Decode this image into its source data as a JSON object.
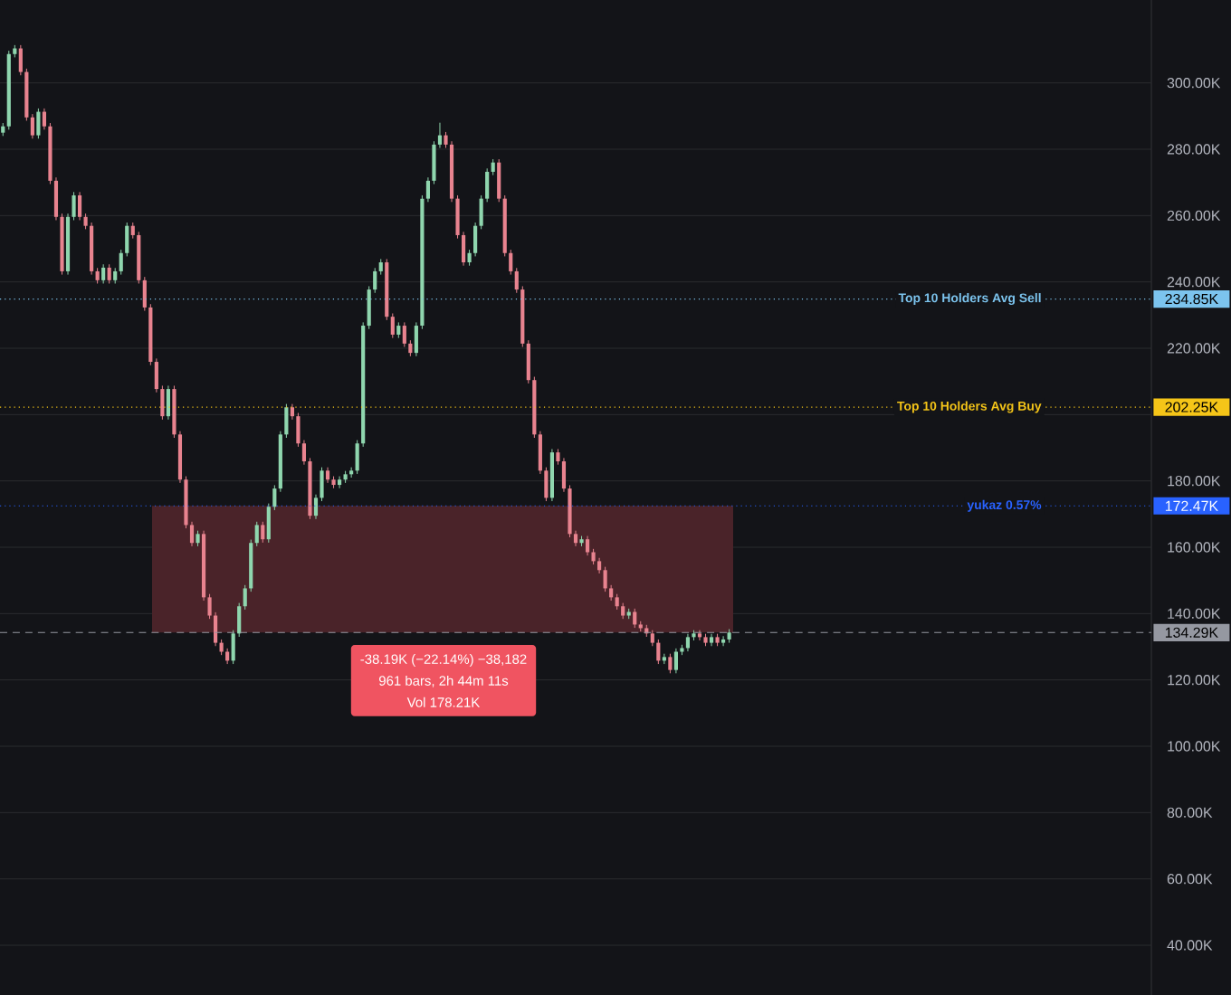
{
  "chart_data": {
    "type": "candlestick",
    "categories": [
      null,
      null,
      null,
      null,
      null,
      null,
      null,
      null,
      null,
      null,
      null,
      null,
      null,
      null,
      null,
      null,
      null,
      null,
      null,
      null,
      null,
      null,
      null,
      null,
      null,
      null,
      null,
      null,
      null,
      null,
      null,
      null,
      null,
      null,
      null,
      null,
      null,
      null,
      null,
      null,
      null,
      null,
      null,
      null,
      null,
      null,
      null,
      null,
      null,
      null,
      null,
      null,
      null,
      null,
      null,
      null,
      null,
      null,
      null,
      null,
      null,
      null,
      null,
      null,
      null,
      null,
      null,
      null,
      null,
      null,
      null,
      null,
      null,
      null,
      null,
      null,
      null,
      null,
      null,
      null,
      null,
      null,
      null,
      null,
      null,
      null,
      null,
      null,
      null,
      null,
      null,
      null,
      null,
      null,
      null,
      null,
      null,
      null,
      null,
      null,
      null,
      null,
      null,
      null,
      null,
      null,
      null,
      null,
      null,
      null,
      null,
      null,
      null,
      null,
      null,
      null,
      null,
      null,
      null,
      null,
      null,
      null,
      null,
      null,
      null,
      null,
      null,
      null,
      null,
      null,
      null,
      null,
      null,
      null,
      null,
      null,
      null,
      null,
      null,
      null,
      null,
      null,
      null,
      null,
      null,
      null,
      null,
      null,
      null,
      null,
      null,
      null,
      null,
      null,
      null,
      null,
      null,
      null,
      null,
      null,
      null,
      null,
      null,
      null,
      null,
      null,
      null,
      null,
      null,
      null,
      null,
      null,
      null,
      null,
      null,
      null,
      null,
      null,
      null,
      null,
      null,
      null,
      null,
      null,
      null,
      null,
      null,
      null,
      null,
      null,
      null,
      null,
      null,
      null,
      null
    ],
    "ohlc": [
      [
        285,
        287.9,
        284,
        286.9
      ],
      [
        286.9,
        309.7,
        285.9,
        308.7
      ],
      [
        308.7,
        311.4,
        307.7,
        310.4
      ],
      [
        310.4,
        311.4,
        302.3,
        303.3
      ],
      [
        303.3,
        304.3,
        288.6,
        289.6
      ],
      [
        289.6,
        290.6,
        283.2,
        284.2
      ],
      [
        284.2,
        292.3,
        283.2,
        291.3
      ],
      [
        291.3,
        292.3,
        285.9,
        286.9
      ],
      [
        286.9,
        287.9,
        269.5,
        270.5
      ],
      [
        270.5,
        271.5,
        258.6,
        259.6
      ],
      [
        259.6,
        260.6,
        242.2,
        243.2
      ],
      [
        243.2,
        260.6,
        242.2,
        259.6
      ],
      [
        259.6,
        267.1,
        258.6,
        266.1
      ],
      [
        266.1,
        267.1,
        258.6,
        259.6
      ],
      [
        259.6,
        260.6,
        255.9,
        256.9
      ],
      [
        256.9,
        257.9,
        242.2,
        243.2
      ],
      [
        243.2,
        244.2,
        239.5,
        240.5
      ],
      [
        240.5,
        245.3,
        239.5,
        244.3
      ],
      [
        244.3,
        245.3,
        239.5,
        240.5
      ],
      [
        240.5,
        244.2,
        239.5,
        243.2
      ],
      [
        243.2,
        249.7,
        242.2,
        248.7
      ],
      [
        248.7,
        257.9,
        247.7,
        256.9
      ],
      [
        256.9,
        257.9,
        253.1,
        254.1
      ],
      [
        254.1,
        255.1,
        239.5,
        240.5
      ],
      [
        240.5,
        241.5,
        231.3,
        232.3
      ],
      [
        232.3,
        233.3,
        214.9,
        215.9
      ],
      [
        215.9,
        216.9,
        206.7,
        207.7
      ],
      [
        207.7,
        208.7,
        198.5,
        199.5
      ],
      [
        199.5,
        208.7,
        198.5,
        207.7
      ],
      [
        207.7,
        208.7,
        193.0,
        194.0
      ],
      [
        194.0,
        195.0,
        179.4,
        180.4
      ],
      [
        180.4,
        181.4,
        165.7,
        166.7
      ],
      [
        166.7,
        167.7,
        160.3,
        161.3
      ],
      [
        161.3,
        165.0,
        160.3,
        164.0
      ],
      [
        164.0,
        165.0,
        143.9,
        144.9
      ],
      [
        144.9,
        145.9,
        138.4,
        139.4
      ],
      [
        139.4,
        140.4,
        130.2,
        131.2
      ],
      [
        131.2,
        132.2,
        127.5,
        128.5
      ],
      [
        128.5,
        129.5,
        124.8,
        125.8
      ],
      [
        125.8,
        135.0,
        124.8,
        134.0
      ],
      [
        134.0,
        143.2,
        133.0,
        142.2
      ],
      [
        142.2,
        148.6,
        141.2,
        147.6
      ],
      [
        147.6,
        162.3,
        146.6,
        161.3
      ],
      [
        161.3,
        167.7,
        160.3,
        166.7
      ],
      [
        166.7,
        167.7,
        161.4,
        162.4
      ],
      [
        162.4,
        173.2,
        161.4,
        172.2
      ],
      [
        172.2,
        178.7,
        171.2,
        177.7
      ],
      [
        177.7,
        195.0,
        176.7,
        194.0
      ],
      [
        194.0,
        203.2,
        193.0,
        202.2
      ],
      [
        202.2,
        203.2,
        198.5,
        199.5
      ],
      [
        199.5,
        200.5,
        190.3,
        191.3
      ],
      [
        191.3,
        192.3,
        184.9,
        185.9
      ],
      [
        185.9,
        186.9,
        168.5,
        169.5
      ],
      [
        169.5,
        175.9,
        168.5,
        174.9
      ],
      [
        174.9,
        184.1,
        173.9,
        183.1
      ],
      [
        183.1,
        184.1,
        179.4,
        180.4
      ],
      [
        180.4,
        181.4,
        177.8,
        178.8
      ],
      [
        178.8,
        181.4,
        177.8,
        180.4
      ],
      [
        180.4,
        183.0,
        179.4,
        182.0
      ],
      [
        182.0,
        184.1,
        181.0,
        183.1
      ],
      [
        183.1,
        192.3,
        182.1,
        191.3
      ],
      [
        191.3,
        227.8,
        190.3,
        226.8
      ],
      [
        226.8,
        238.7,
        225.8,
        237.7
      ],
      [
        237.7,
        244.2,
        236.7,
        243.2
      ],
      [
        243.2,
        246.9,
        242.2,
        245.9
      ],
      [
        245.9,
        246.9,
        228.5,
        229.5
      ],
      [
        229.5,
        230.5,
        223.1,
        224.1
      ],
      [
        224.1,
        227.8,
        223.1,
        226.8
      ],
      [
        226.8,
        227.8,
        220.4,
        221.4
      ],
      [
        221.4,
        222.4,
        217.6,
        218.6
      ],
      [
        218.6,
        227.8,
        217.6,
        226.8
      ],
      [
        226.8,
        266.1,
        225.8,
        265.1
      ],
      [
        265.1,
        271.5,
        264.1,
        270.5
      ],
      [
        270.5,
        282.4,
        269.5,
        281.4
      ],
      [
        281.4,
        288.0,
        280.4,
        284.2
      ],
      [
        284.2,
        285.2,
        280.4,
        281.4
      ],
      [
        281.4,
        282.4,
        264.1,
        265.1
      ],
      [
        265.1,
        266.1,
        253.1,
        254.1
      ],
      [
        254.1,
        255.1,
        244.9,
        245.9
      ],
      [
        245.9,
        249.7,
        244.9,
        248.7
      ],
      [
        248.7,
        257.9,
        247.7,
        256.9
      ],
      [
        256.9,
        266.1,
        255.9,
        265.1
      ],
      [
        265.1,
        274.2,
        264.1,
        273.2
      ],
      [
        273.2,
        277.0,
        272.2,
        276.0
      ],
      [
        276.0,
        277.0,
        264.1,
        265.1
      ],
      [
        265.1,
        266.1,
        247.7,
        248.7
      ],
      [
        248.7,
        249.7,
        242.2,
        243.2
      ],
      [
        243.2,
        244.2,
        236.7,
        237.7
      ],
      [
        237.7,
        238.7,
        220.4,
        221.4
      ],
      [
        221.4,
        222.4,
        209.4,
        210.4
      ],
      [
        210.4,
        211.4,
        193.0,
        194.0
      ],
      [
        194.0,
        195.0,
        182.1,
        183.1
      ],
      [
        183.1,
        184.1,
        173.9,
        174.9
      ],
      [
        174.9,
        189.6,
        173.9,
        188.6
      ],
      [
        188.6,
        189.6,
        184.9,
        185.9
      ],
      [
        185.9,
        186.9,
        176.7,
        177.7
      ],
      [
        177.7,
        178.7,
        163.0,
        164.0
      ],
      [
        164.0,
        165.0,
        160.3,
        161.3
      ],
      [
        161.3,
        163.4,
        160.3,
        162.4
      ],
      [
        162.4,
        163.4,
        157.5,
        158.5
      ],
      [
        158.5,
        159.5,
        154.8,
        155.8
      ],
      [
        155.8,
        156.8,
        152.1,
        153.1
      ],
      [
        153.1,
        154.1,
        146.6,
        147.6
      ],
      [
        147.6,
        148.6,
        143.9,
        144.9
      ],
      [
        144.9,
        145.9,
        141.2,
        142.2
      ],
      [
        142.2,
        143.2,
        138.4,
        139.4
      ],
      [
        139.4,
        141.5,
        138.4,
        140.5
      ],
      [
        140.5,
        141.5,
        135.7,
        136.7
      ],
      [
        136.7,
        137.7,
        134.6,
        135.6
      ],
      [
        135.6,
        136.6,
        133.0,
        134.0
      ],
      [
        134.0,
        135.0,
        130.2,
        131.2
      ],
      [
        131.2,
        132.2,
        124.8,
        125.8
      ],
      [
        125.8,
        127.9,
        124.8,
        126.9
      ],
      [
        126.9,
        127.9,
        122.0,
        123.0
      ],
      [
        123.0,
        129.5,
        122.0,
        128.5
      ],
      [
        128.5,
        130.6,
        127.5,
        129.6
      ],
      [
        129.6,
        133.9,
        128.6,
        132.9
      ],
      [
        132.9,
        135.0,
        131.9,
        134.0
      ],
      [
        134.0,
        135.0,
        131.9,
        132.9
      ],
      [
        132.9,
        133.9,
        130.2,
        131.2
      ],
      [
        131.2,
        133.9,
        130.2,
        132.9
      ],
      [
        132.9,
        133.9,
        130.2,
        131.2
      ],
      [
        131.2,
        133.2,
        130.2,
        132.2
      ],
      [
        132.2,
        135.3,
        131.2,
        134.3
      ],
      null,
      null,
      null,
      null,
      null,
      null,
      null,
      null,
      null,
      null,
      null,
      null,
      null,
      null,
      null,
      null,
      null,
      null,
      null,
      null,
      null,
      null,
      null,
      null,
      null,
      null,
      null,
      null,
      null,
      null,
      null,
      null,
      null,
      null,
      null,
      null,
      null,
      null,
      null,
      null,
      null,
      null,
      null,
      null,
      null,
      null,
      null,
      null,
      null,
      null,
      null,
      null,
      null,
      null,
      null,
      null,
      null,
      null,
      null,
      null,
      null,
      null,
      null,
      null,
      null,
      null,
      null,
      null,
      null,
      null,
      null
    ],
    "ylim": [
      25,
      325
    ],
    "yticks": [
      {
        "value": 40,
        "label": "40.00K"
      },
      {
        "value": 60,
        "label": "60.00K"
      },
      {
        "value": 80,
        "label": "80.00K"
      },
      {
        "value": 100,
        "label": "100.00K"
      },
      {
        "value": 120,
        "label": "120.00K"
      },
      {
        "value": 140,
        "label": "140.00K"
      },
      {
        "value": 160,
        "label": "160.00K"
      },
      {
        "value": 180,
        "label": "180.00K"
      },
      {
        "value": 200,
        "label": null
      },
      {
        "value": 220,
        "label": "220.00K"
      },
      {
        "value": 240,
        "label": "240.00K"
      },
      {
        "value": 260,
        "label": "260.00K"
      },
      {
        "value": 280,
        "label": "280.00K"
      },
      {
        "value": 300,
        "label": "300.00K"
      }
    ],
    "grid": "y",
    "tick_labels": "y",
    "ref_lines": [
      {
        "axis": "y",
        "value": 234.85,
        "label": "Top 10 Holders Avg Sell",
        "color": "#7cc4ee",
        "line_style": "dotted"
      },
      {
        "axis": "y",
        "value": 202.25,
        "label": "Top 10 Holders Avg Buy",
        "color": "#f5c518",
        "line_style": "dotted"
      },
      {
        "axis": "y",
        "value": 172.47,
        "label": "yukaz 0.57%",
        "color": "#2962ff",
        "line_style": "dotted"
      },
      {
        "axis": "y",
        "value": 134.29,
        "color": "#9598a1",
        "line_style": "dashed"
      }
    ],
    "bands": [
      {
        "axis": "y",
        "from": 134.29,
        "to": 172.47,
        "color": "#4a2329"
      }
    ],
    "annotations": [
      "234.85K",
      "202.25K",
      "172.47K",
      "134.29K",
      "-38.19K (−22.14%) −38,182",
      "961 bars, 2h 44m 11s",
      "Vol 178.21K"
    ]
  }
}
